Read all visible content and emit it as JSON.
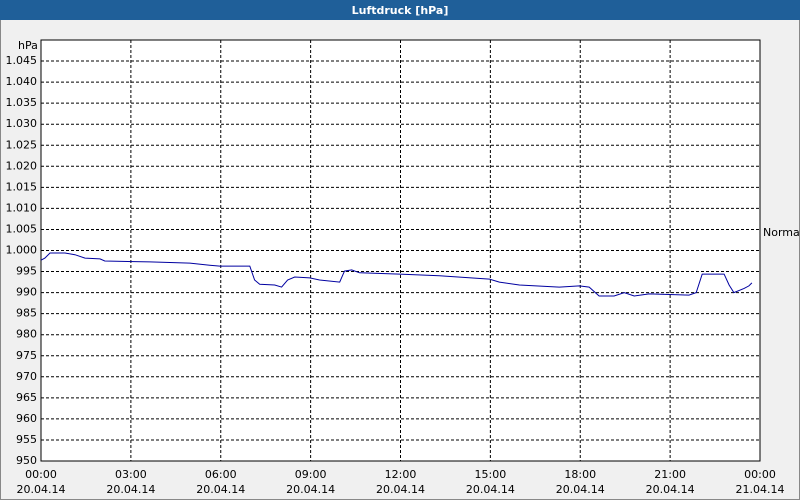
{
  "chart_data": {
    "type": "line",
    "title": "Luftdruck [hPa]",
    "y_label": "hPa",
    "annotation": "Normal",
    "xlim": [
      0,
      24
    ],
    "xticks": [
      {
        "value": 0,
        "label": "00:00"
      },
      {
        "value": 3,
        "label": "03:00"
      },
      {
        "value": 6,
        "label": "06:00"
      },
      {
        "value": 9,
        "label": "09:00"
      },
      {
        "value": 12,
        "label": "12:00"
      },
      {
        "value": 15,
        "label": "15:00"
      },
      {
        "value": 18,
        "label": "18:00"
      },
      {
        "value": 21,
        "label": "21:00"
      },
      {
        "value": 24,
        "label": "00:00"
      }
    ],
    "xtick_dates": [
      "20.04.14",
      "20.04.14",
      "20.04.14",
      "20.04.14",
      "20.04.14",
      "20.04.14",
      "20.04.14",
      "20.04.14",
      "21.04.14"
    ],
    "ylim": [
      950,
      1050
    ],
    "yticks": [
      950,
      955,
      960,
      965,
      970,
      975,
      980,
      985,
      990,
      995,
      {
        "value": 1000,
        "label": "1.000"
      },
      {
        "value": 1005,
        "label": "1.005"
      },
      {
        "value": 1010,
        "label": "1.010"
      },
      {
        "value": 1015,
        "label": "1.015"
      },
      {
        "value": 1020,
        "label": "1.020"
      },
      {
        "value": 1025,
        "label": "1.025"
      },
      {
        "value": 1030,
        "label": "1.030"
      },
      {
        "value": 1035,
        "label": "1.035"
      },
      {
        "value": 1040,
        "label": "1.040"
      },
      {
        "value": 1045,
        "label": "1.045"
      }
    ],
    "grid": true,
    "series": [
      {
        "color": "#0000a0",
        "x": [
          0,
          0.13,
          0.3,
          0.8,
          1.13,
          1.47,
          1.97,
          2.13,
          3.63,
          4.97,
          5.63,
          5.97,
          6.97,
          7.13,
          7.3,
          7.8,
          8.03,
          8.23,
          8.47,
          8.97,
          9.3,
          9.97,
          10.13,
          10.37,
          10.63,
          11.97,
          13.3,
          14.97,
          15.3,
          15.97,
          17.3,
          17.97,
          18.3,
          18.63,
          19.13,
          19.47,
          19.8,
          20.3,
          21.63,
          21.87,
          22.07,
          22.8,
          22.97,
          23.13,
          23.47,
          23.63,
          23.73
        ],
        "values": [
          997.7,
          998.2,
          999.4,
          999.4,
          999,
          998.2,
          998,
          997.5,
          997.3,
          997,
          996.5,
          996.3,
          996.3,
          993,
          992,
          991.8,
          991.3,
          993,
          993.7,
          993.5,
          993,
          992.5,
          995.1,
          995.4,
          994.7,
          994.4,
          994,
          993.2,
          992.5,
          991.8,
          991.3,
          991.6,
          991.3,
          989.2,
          989.2,
          990,
          989.2,
          989.7,
          989.4,
          990,
          994.4,
          994.4,
          991.8,
          990,
          991,
          991.6,
          992.3
        ]
      }
    ]
  }
}
